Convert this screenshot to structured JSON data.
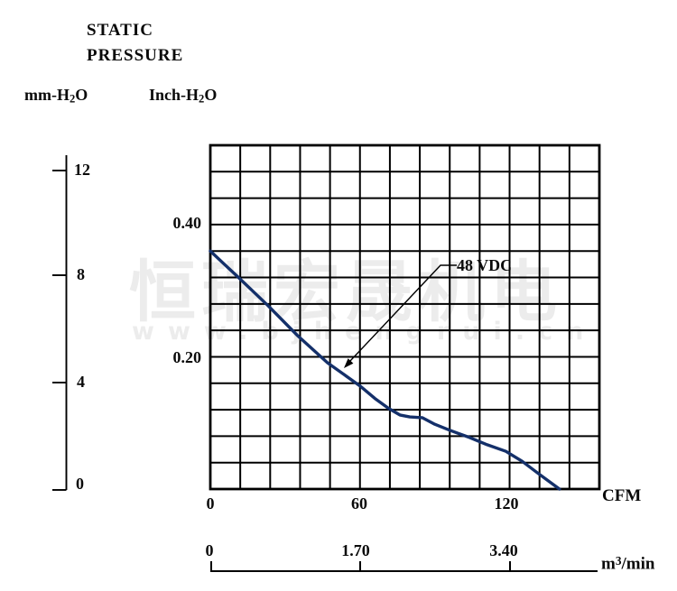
{
  "title": {
    "line1": "STATIC",
    "line2": "PRESSURE"
  },
  "axes": {
    "mm_unit": {
      "pre": "mm-H",
      "sub": "2",
      "post": "O"
    },
    "inch_unit": {
      "pre": "Inch-H",
      "sub": "2",
      "post": "O"
    },
    "cfm_unit": "CFM",
    "m3_unit": {
      "pre": "m",
      "sup": "3",
      "post": "/min"
    },
    "mm_ticks": [
      "12",
      "8",
      "4",
      "0"
    ],
    "inch_ticks": [
      "0.40",
      "0.20"
    ],
    "cfm_ticks": [
      "0",
      "60",
      "120"
    ],
    "m3_ticks": [
      "0",
      "1.70",
      "3.40"
    ]
  },
  "curve_label": "48 VDC",
  "watermark": {
    "cn": "恒瑞宏晟机电",
    "url": "www.bjhengrui.cn"
  },
  "colors": {
    "curve": "#14306a",
    "grid": "#000000",
    "text": "#0a0a0a",
    "watermark": "#ececec"
  },
  "chart_data": {
    "type": "line",
    "title": "Static Pressure vs Airflow fan performance curve",
    "series": [
      {
        "name": "48 VDC",
        "x_cfm": [
          0,
          11,
          23,
          35,
          47,
          60,
          66,
          71.5,
          76,
          80,
          85,
          90,
          96,
          104,
          111,
          118.5,
          125,
          131,
          136,
          140
        ],
        "y_inch_h2o": [
          0.36,
          0.321,
          0.278,
          0.232,
          0.191,
          0.156,
          0.137,
          0.122,
          0.112,
          0.109,
          0.108,
          0.098,
          0.089,
          0.078,
          0.067,
          0.057,
          0.042,
          0.025,
          0.011,
          0.0
        ]
      }
    ],
    "x_axis": {
      "label": "CFM",
      "range": [
        0,
        156
      ],
      "ticks": [
        0,
        60,
        120
      ],
      "secondary": {
        "label": "m³/min",
        "ticks": [
          0,
          1.7,
          3.4
        ],
        "range": [
          0,
          4.42
        ]
      }
    },
    "y_axis": {
      "label": "Inch-H₂O",
      "range": [
        0,
        0.52
      ],
      "ticks": [
        0.2,
        0.4
      ],
      "secondary": {
        "label": "mm-H₂O",
        "range": [
          0,
          12
        ],
        "ticks": [
          0,
          4,
          8,
          12
        ]
      }
    },
    "grid": {
      "cols": 13,
      "rows": 13,
      "on": true
    },
    "legend": "none",
    "annotation": {
      "text": "48 VDC",
      "points_to": {
        "cfm": 53,
        "inch_h2o": 0.18
      }
    }
  }
}
